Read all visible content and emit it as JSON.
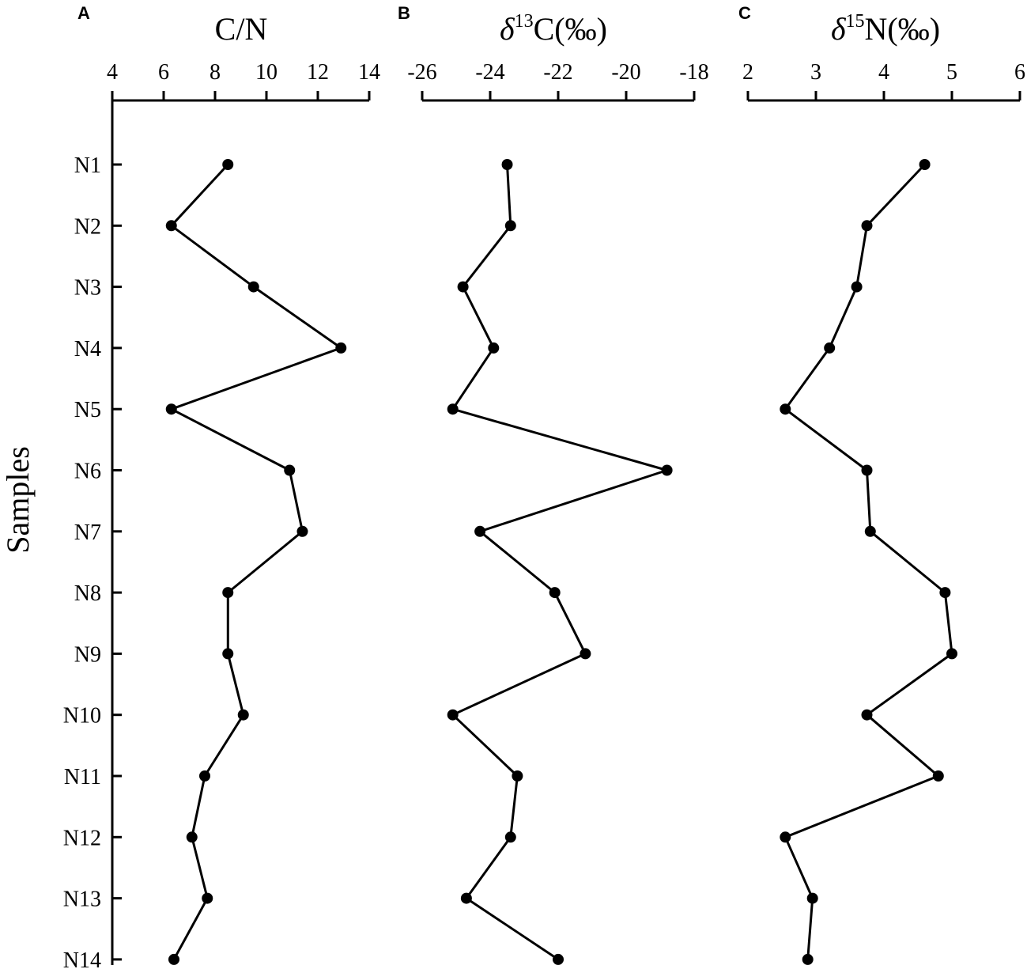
{
  "chart_data": {
    "type": "line",
    "y_axis_label": "Samples",
    "categories": [
      "N1",
      "N2",
      "N3",
      "N4",
      "N5",
      "N6",
      "N7",
      "N8",
      "N9",
      "N10",
      "N11",
      "N12",
      "N13",
      "N14"
    ],
    "panels": [
      {
        "letter": "A",
        "title": "C/N",
        "xlim": [
          4,
          14
        ],
        "ticks": [
          4,
          6,
          8,
          10,
          12,
          14
        ],
        "tick_labels": [
          "4",
          "6",
          "8",
          "10",
          "12",
          "14"
        ],
        "values": [
          8.5,
          6.3,
          9.5,
          12.9,
          6.3,
          10.9,
          11.4,
          8.5,
          8.5,
          9.1,
          7.6,
          7.1,
          7.7,
          6.4
        ]
      },
      {
        "letter": "B",
        "title_prefix": "δ",
        "title_sup": "13",
        "title_suffix": "C(‰)",
        "xlim": [
          -26,
          -18
        ],
        "ticks": [
          -26,
          -24,
          -22,
          -20,
          -18
        ],
        "tick_labels": [
          "-26",
          "-24",
          "-22",
          "-20",
          "-18"
        ],
        "values": [
          -23.5,
          -23.4,
          -24.8,
          -23.9,
          -25.1,
          -18.8,
          -24.3,
          -22.1,
          -21.2,
          -25.1,
          -23.2,
          -23.4,
          -24.7,
          -22.0
        ]
      },
      {
        "letter": "C",
        "title_prefix": "δ",
        "title_sup": "15",
        "title_suffix": "N(‰)",
        "xlim": [
          2,
          6
        ],
        "ticks": [
          2,
          3,
          4,
          5,
          6
        ],
        "tick_labels": [
          "2",
          "3",
          "4",
          "5",
          "6"
        ],
        "values": [
          4.6,
          3.75,
          3.6,
          3.2,
          2.55,
          3.75,
          3.8,
          4.9,
          5.0,
          3.75,
          4.8,
          2.55,
          2.95,
          2.88
        ]
      }
    ]
  }
}
